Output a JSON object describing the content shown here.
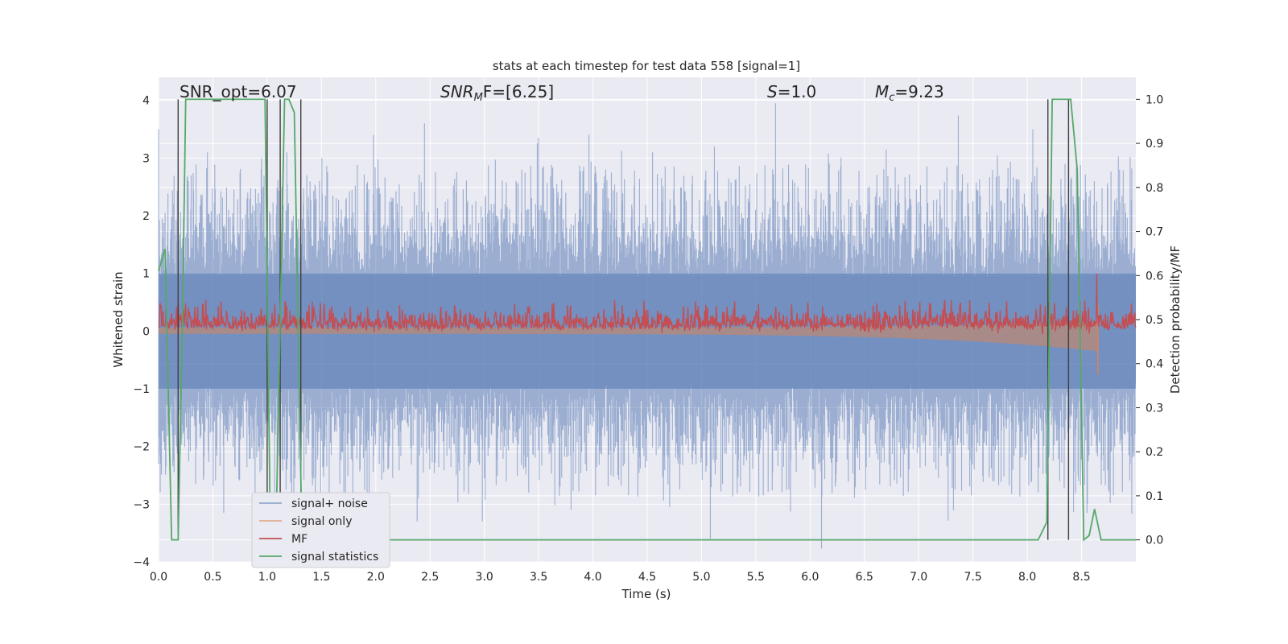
{
  "chart_data": {
    "type": "line",
    "title": "stats at each timestep for test data 558 [signal=1]",
    "xlabel": "Time (s)",
    "ylabel": "Whitened strain",
    "y2label": "Detection probability/MF",
    "xlim": [
      0,
      9.0
    ],
    "ylim": [
      -4,
      4.4
    ],
    "y2lim": [
      -0.05,
      1.05
    ],
    "xticks": [
      "0.0",
      "0.5",
      "1.0",
      "1.5",
      "2.0",
      "2.5",
      "3.0",
      "3.5",
      "4.0",
      "4.5",
      "5.0",
      "5.5",
      "6.0",
      "6.5",
      "7.0",
      "7.5",
      "8.0",
      "8.5"
    ],
    "yticks": [
      "−4",
      "−3",
      "−2",
      "−1",
      "0",
      "1",
      "2",
      "3",
      "4"
    ],
    "y2ticks": [
      "0.0",
      "0.1",
      "0.2",
      "0.3",
      "0.4",
      "0.5",
      "0.6",
      "0.7",
      "0.8",
      "0.9",
      "1.0"
    ],
    "grid": true,
    "legend_position": "lower-left",
    "annotations": {
      "snr_opt": "SNR_opt=6.07",
      "snr_mf_sym": "SNR",
      "snr_mf_sub": "M",
      "snr_mf_rest": "F=[6.25]",
      "s_sym": "S",
      "s_rest": "=1.0",
      "mc_sym": "M",
      "mc_sub": "c",
      "mc_rest": "=9.23"
    },
    "series": [
      {
        "name": "signal+ noise",
        "color": "#4c72b0",
        "axis": "left",
        "description_points": {
          "envelope_upper": [
            2.0,
            2.5,
            2.3,
            2.6,
            2.4,
            2.5,
            2.7,
            2.4,
            2.6,
            2.5,
            2.6,
            2.4,
            2.5,
            2.6,
            2.4,
            2.6,
            2.5,
            2.3
          ],
          "peaks_t": [
            0.0,
            0.45,
            0.95,
            1.18,
            1.98,
            2.45,
            3.5,
            4.55,
            5.12,
            5.68,
            6.7,
            8.05,
            8.38
          ],
          "peaks_y": [
            3.5,
            3.1,
            3.0,
            3.1,
            3.4,
            3.6,
            3.35,
            3.1,
            3.2,
            3.95,
            3.15,
            3.5,
            3.5
          ],
          "troughs_t": [
            0.6,
            2.38,
            2.98,
            5.08,
            8.55
          ],
          "troughs_y": [
            -3.15,
            -3.3,
            -3.3,
            -3.6,
            -3.15
          ]
        }
      },
      {
        "name": "signal only",
        "color": "#dd8452",
        "axis": "left",
        "chirp_end_t": 8.65,
        "chirp_end_amp": [
          0.45,
          -0.75
        ]
      },
      {
        "name": "MF",
        "color": "#c44e52",
        "axis": "left",
        "baseline": 0.12,
        "band_high": 0.42,
        "spike_t": 8.64,
        "spike_y": 1.0
      },
      {
        "name": "signal statistics",
        "color": "#55a868",
        "axis": "right",
        "t": [
          0.0,
          0.06,
          0.12,
          0.18,
          0.22,
          0.25,
          0.35,
          0.98,
          1.03,
          1.08,
          1.16,
          1.2,
          1.25,
          1.32,
          1.37,
          1.45,
          8.1,
          8.18,
          8.23,
          8.4,
          8.46,
          8.52,
          8.57,
          8.62,
          8.68,
          9.0
        ],
        "y": [
          0.61,
          0.66,
          0.0,
          0.0,
          0.5,
          1.0,
          1.0,
          1.0,
          0.0,
          0.0,
          1.0,
          1.0,
          0.97,
          0.0,
          0.0,
          0.0,
          0.0,
          0.04,
          1.0,
          1.0,
          0.84,
          0.0,
          0.01,
          0.07,
          0.0,
          0.0
        ]
      }
    ],
    "vertical_markers_t": [
      0.18,
      1.0,
      1.12,
      1.31,
      8.19,
      8.38
    ]
  }
}
